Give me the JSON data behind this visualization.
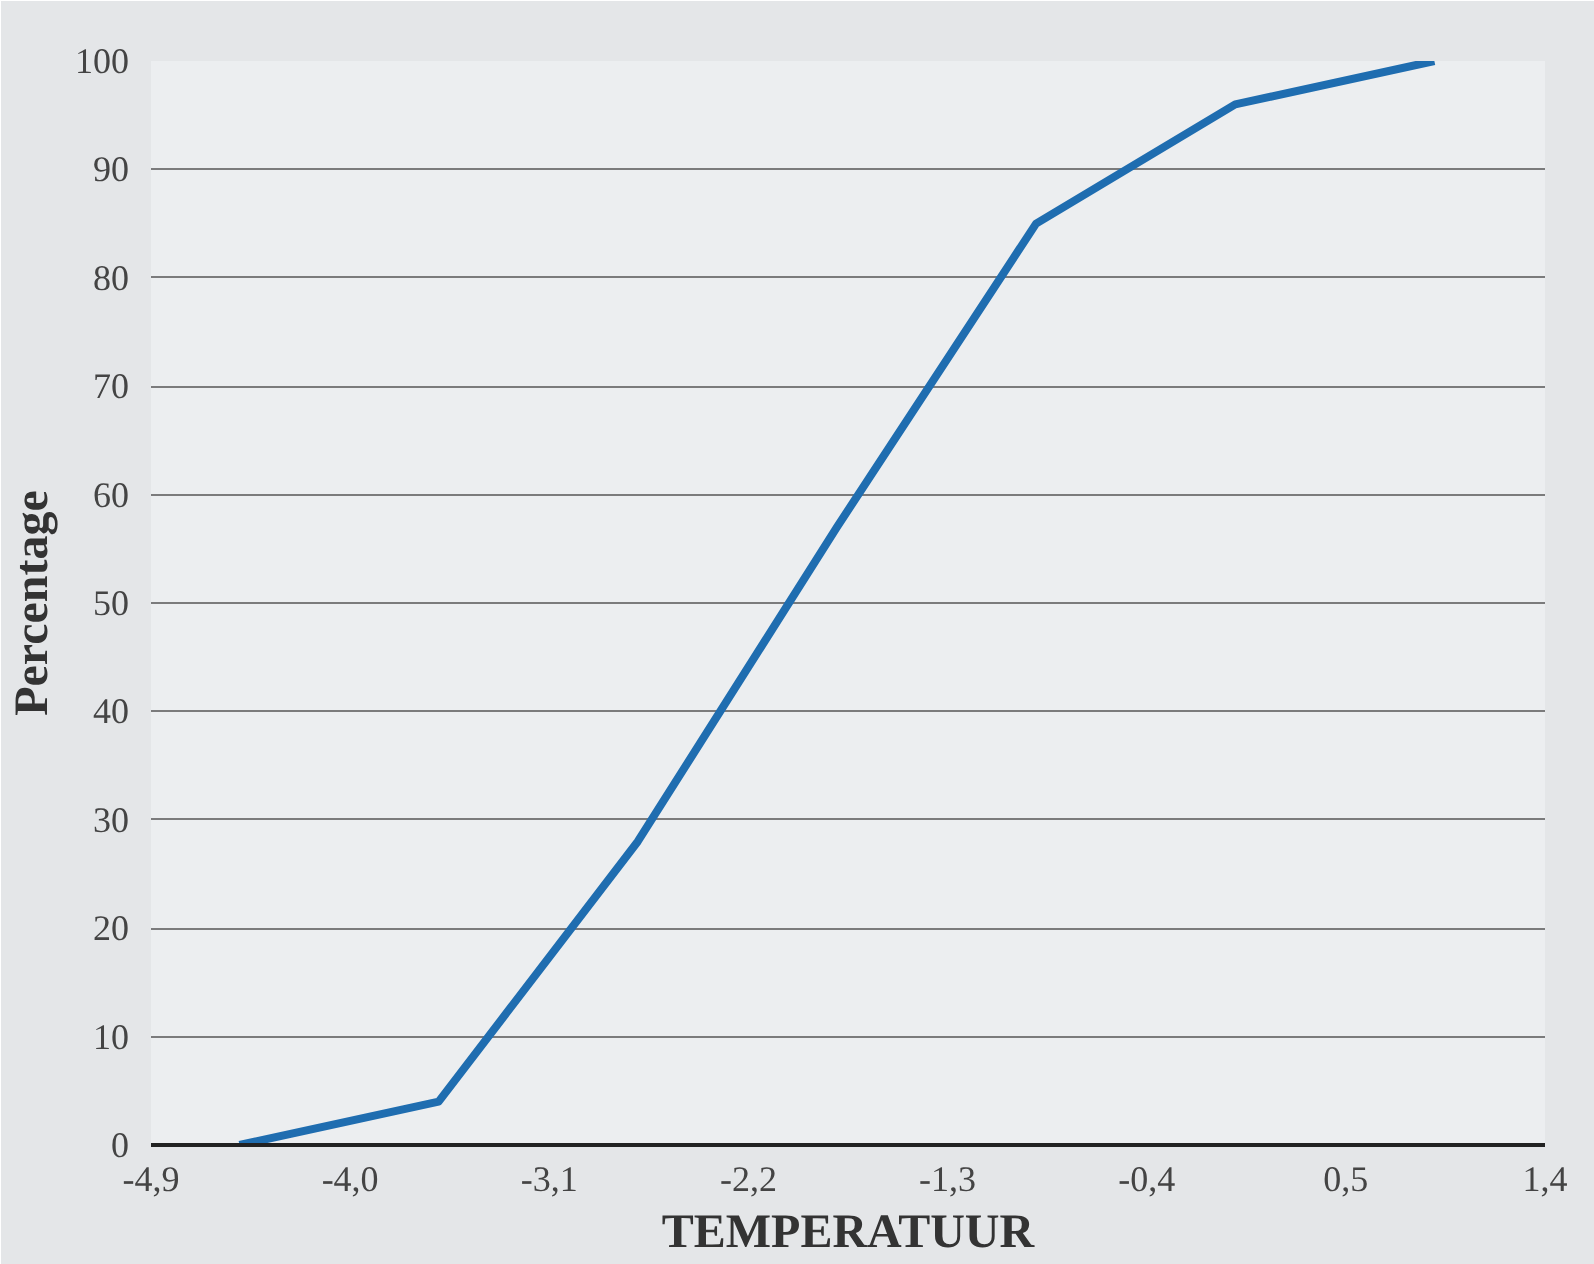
{
  "chart_data": {
    "type": "line",
    "xlabel": "TEMPERATUUR",
    "ylabel": "Percentage",
    "x": [
      -4.5,
      -3.6,
      -2.7,
      -1.8,
      -0.9,
      0,
      0.9
    ],
    "series": [
      {
        "color": "#1f6db0",
        "values": [
          0,
          4,
          28,
          57,
          85,
          96,
          100
        ]
      }
    ],
    "xlim": [
      -4.9,
      1.4
    ],
    "xticks": [
      {
        "value": -4.9,
        "label": "-4,9"
      },
      {
        "value": -4.0,
        "label": "-4,0"
      },
      {
        "value": -3.1,
        "label": "-3,1"
      },
      {
        "value": -2.2,
        "label": "-2,2"
      },
      {
        "value": -1.3,
        "label": "-1,3"
      },
      {
        "value": -0.4,
        "label": "-0,4"
      },
      {
        "value": 0.5,
        "label": "0,5"
      },
      {
        "value": 1.4,
        "label": "1,4"
      }
    ],
    "ylim": [
      0,
      100
    ],
    "yticks": [
      0,
      10,
      20,
      30,
      40,
      50,
      60,
      70,
      80,
      90,
      100
    ],
    "grid": "y",
    "marker": "none",
    "line_style": "solid"
  }
}
